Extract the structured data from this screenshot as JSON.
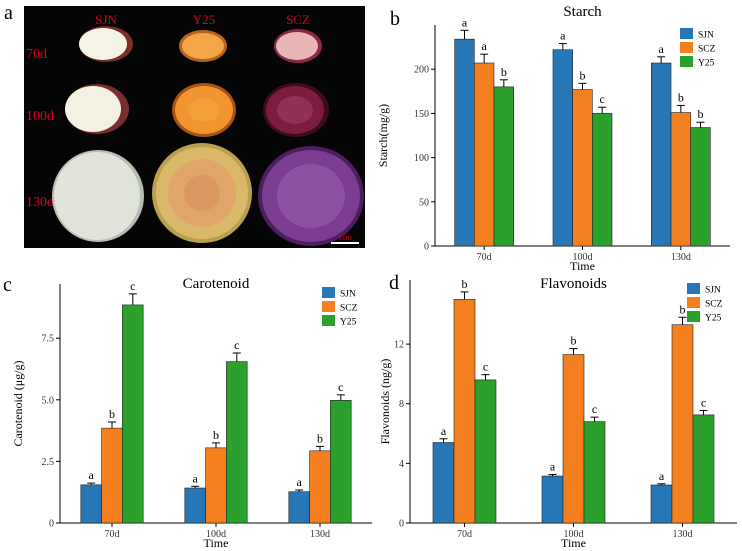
{
  "panels": {
    "a": {
      "letter": "a"
    },
    "b": {
      "letter": "b"
    },
    "c": {
      "letter": "c"
    },
    "d": {
      "letter": "d"
    }
  },
  "photo": {
    "columns": [
      "SJN",
      "Y25",
      "SCZ"
    ],
    "rows": [
      "70d",
      "100d",
      "130d"
    ],
    "scale_bar": "1cm",
    "label_color": "#e0001a",
    "flesh_colors": {
      "SJN": [
        "#f5f2e6",
        "#f4f1e3",
        "#dfe3da"
      ],
      "Y25": [
        "#f3a645",
        "#f2952e",
        "#d9b86a"
      ],
      "SCZ": [
        "#e9b6b6",
        "#7c1d3f",
        "#7a3d8f"
      ]
    }
  },
  "chart_data": [
    {
      "id": "b",
      "type": "bar",
      "title": "Starch",
      "xlabel": "Time",
      "ylabel": "Starch(mg/g)",
      "categories": [
        "70d",
        "100d",
        "130d"
      ],
      "yticks": [
        0,
        50,
        100,
        150,
        200
      ],
      "ylim": [
        0,
        250
      ],
      "legend_position": "top-right",
      "series": [
        {
          "name": "SJN",
          "color": "#2776b5",
          "values": [
            234,
            222,
            207
          ],
          "errors": [
            10,
            7,
            7
          ],
          "letters": [
            "a",
            "a",
            "a"
          ]
        },
        {
          "name": "SCZ",
          "color": "#f47f1e",
          "values": [
            207,
            177,
            151
          ],
          "errors": [
            10,
            7,
            8
          ],
          "letters": [
            "a",
            "b",
            "b"
          ]
        },
        {
          "name": "Y25",
          "color": "#2ca02c",
          "values": [
            180,
            150,
            134
          ],
          "errors": [
            8,
            7,
            6
          ],
          "letters": [
            "b",
            "c",
            "b"
          ]
        }
      ]
    },
    {
      "id": "c",
      "type": "bar",
      "title": "Carotenoid",
      "xlabel": "Time",
      "ylabel": "Carotenoid (μg/g)",
      "categories": [
        "70d",
        "100d",
        "130d"
      ],
      "yticks": [
        "0",
        "2.5",
        "5.0",
        "7.5"
      ],
      "ytick_values": [
        0,
        2.5,
        5.0,
        7.5
      ],
      "ylim": [
        0,
        9.7
      ],
      "legend_position": "top-right",
      "series": [
        {
          "name": "SJN",
          "color": "#2776b5",
          "values": [
            1.55,
            1.42,
            1.27
          ],
          "errors": [
            0.07,
            0.07,
            0.07
          ],
          "letters": [
            "a",
            "a",
            "a"
          ]
        },
        {
          "name": "SCZ",
          "color": "#f47f1e",
          "values": [
            3.85,
            3.05,
            2.93
          ],
          "errors": [
            0.25,
            0.2,
            0.18
          ],
          "letters": [
            "b",
            "b",
            "b"
          ]
        },
        {
          "name": "Y25",
          "color": "#2ca02c",
          "values": [
            8.85,
            6.55,
            4.98
          ],
          "errors": [
            0.45,
            0.35,
            0.22
          ],
          "letters": [
            "c",
            "c",
            "c"
          ]
        }
      ]
    },
    {
      "id": "d",
      "type": "bar",
      "title": "Flavonoids",
      "xlabel": "Time",
      "ylabel": "Flavonoids (ng/g)",
      "categories": [
        "70d",
        "100d",
        "130d"
      ],
      "yticks": [
        0,
        4,
        8,
        12
      ],
      "ylim": [
        0,
        16.3
      ],
      "legend_position": "top-right",
      "series": [
        {
          "name": "SJN",
          "color": "#2776b5",
          "values": [
            5.4,
            3.15,
            2.55
          ],
          "errors": [
            0.25,
            0.1,
            0.08
          ],
          "letters": [
            "a",
            "a",
            "a"
          ]
        },
        {
          "name": "SCZ",
          "color": "#f47f1e",
          "values": [
            15.0,
            11.3,
            13.3
          ],
          "errors": [
            0.5,
            0.4,
            0.5
          ],
          "letters": [
            "b",
            "b",
            "b"
          ]
        },
        {
          "name": "Y25",
          "color": "#2ca02c",
          "values": [
            9.6,
            6.8,
            7.25
          ],
          "errors": [
            0.35,
            0.3,
            0.3
          ],
          "letters": [
            "c",
            "c",
            "c"
          ]
        }
      ]
    }
  ]
}
